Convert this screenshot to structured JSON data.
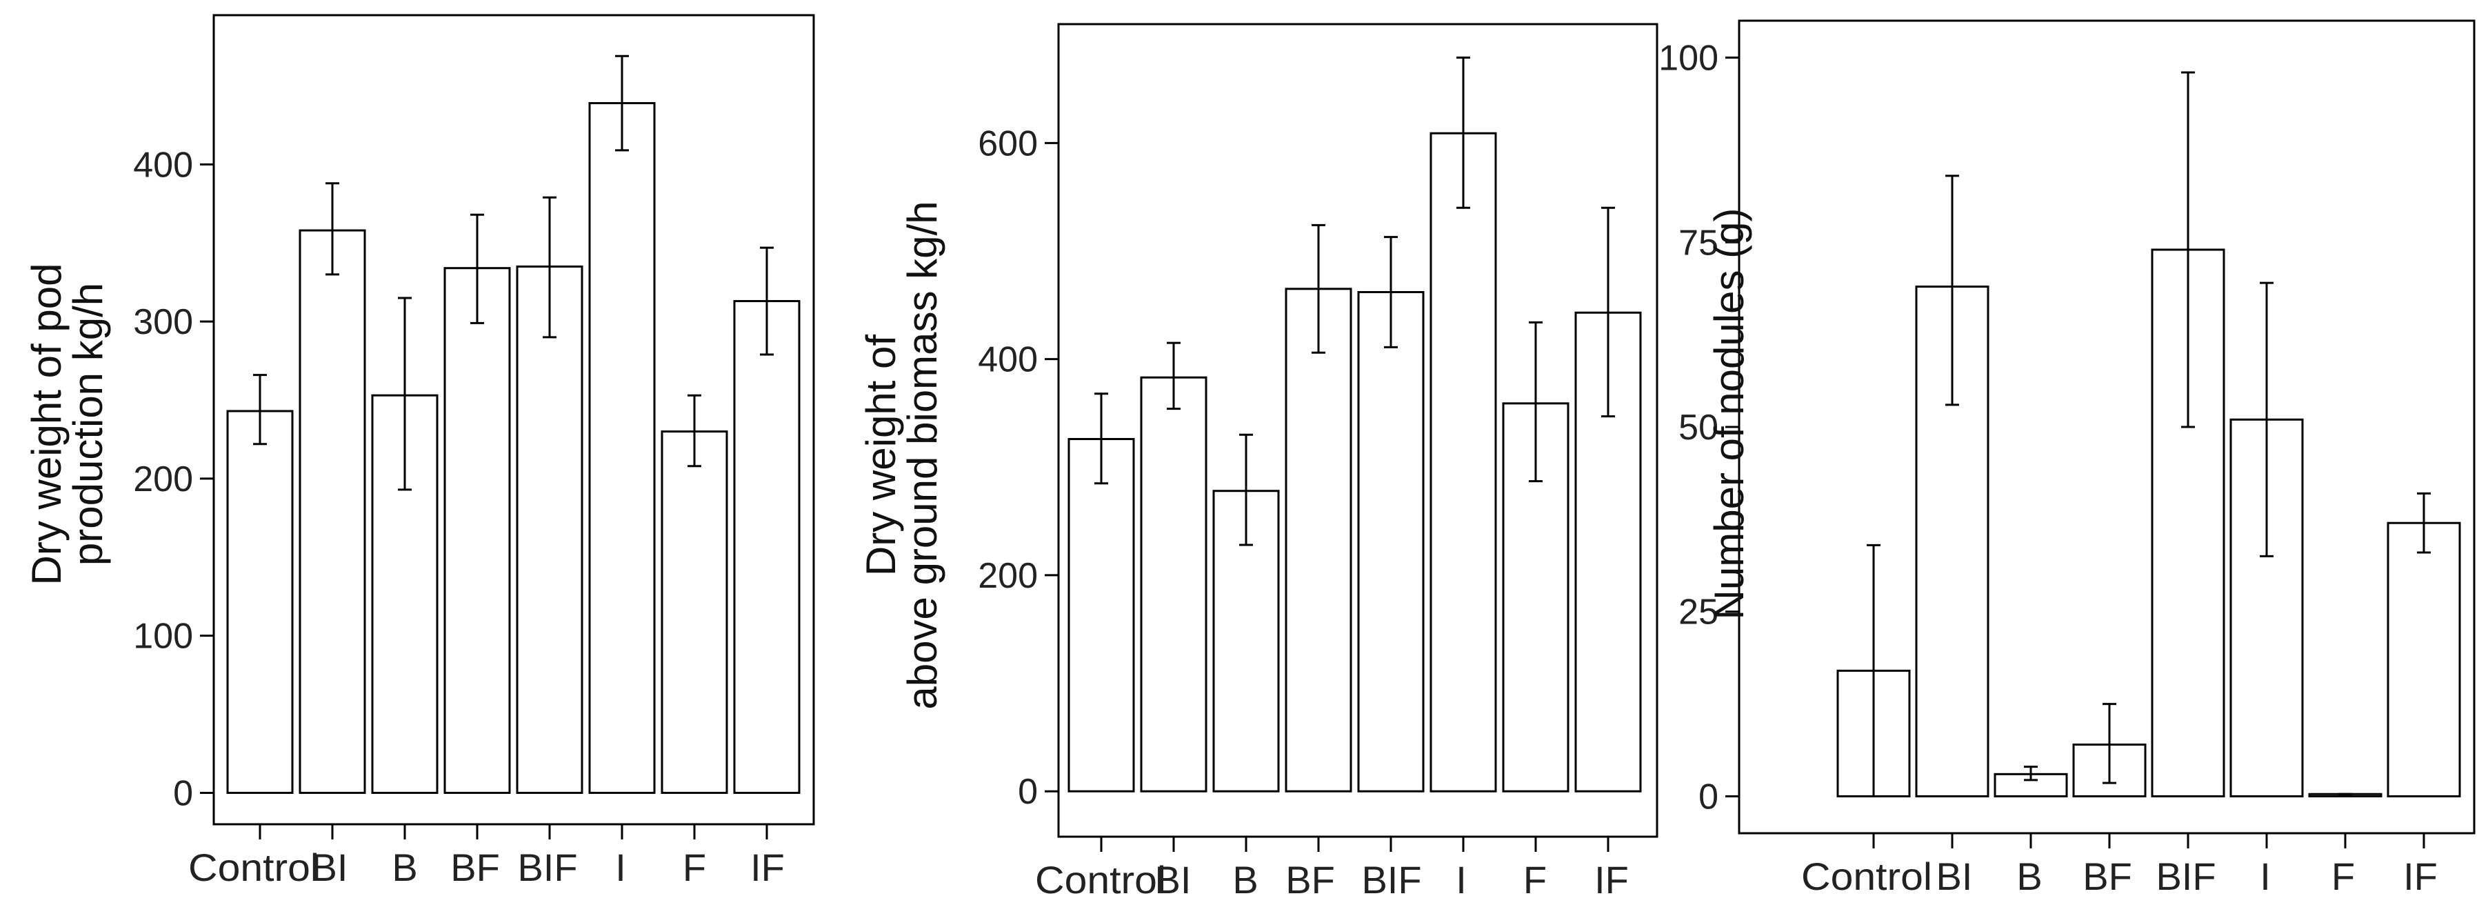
{
  "chart_data": [
    {
      "type": "bar",
      "title": "",
      "xlabel": "",
      "ylabel_lines": [
        "Dry weight of pod",
        "production  kg/h"
      ],
      "categories": [
        "Control",
        "BI",
        "B",
        "BF",
        "BIF",
        "I",
        "F",
        "IF"
      ],
      "values": [
        243,
        358,
        253,
        334,
        335,
        439,
        230,
        313
      ],
      "errors": [
        {
          "low": 222,
          "high": 266
        },
        {
          "low": 330,
          "high": 388
        },
        {
          "low": 193,
          "high": 315
        },
        {
          "low": 299,
          "high": 368
        },
        {
          "low": 290,
          "high": 379
        },
        {
          "low": 409,
          "high": 469
        },
        {
          "low": 208,
          "high": 253
        },
        {
          "low": 279,
          "high": 347
        }
      ],
      "ylim": [
        -20,
        495
      ],
      "yticks": [
        0,
        100,
        200,
        300,
        400
      ],
      "ytick_labels": [
        "0",
        "100",
        "200",
        "300",
        "400"
      ],
      "grid": false
    },
    {
      "type": "bar",
      "title": "",
      "xlabel": "",
      "ylabel_lines": [
        "Dry weight of",
        "above ground biomass  kg/h"
      ],
      "categories": [
        "Control",
        "BI",
        "B",
        "BF",
        "BIF",
        "I",
        "F",
        "IF"
      ],
      "values": [
        326,
        383,
        278,
        465,
        462,
        609,
        359,
        443
      ],
      "errors": [
        {
          "low": 285,
          "high": 368
        },
        {
          "low": 354,
          "high": 415
        },
        {
          "low": 228,
          "high": 330
        },
        {
          "low": 406,
          "high": 524
        },
        {
          "low": 411,
          "high": 513
        },
        {
          "low": 540,
          "high": 679
        },
        {
          "low": 287,
          "high": 434
        },
        {
          "low": 347,
          "high": 540
        }
      ],
      "ylim": [
        -42,
        710
      ],
      "yticks": [
        0,
        200,
        400,
        600
      ],
      "ytick_labels": [
        "0",
        "200",
        "400",
        "600"
      ],
      "grid": false
    },
    {
      "type": "bar",
      "title": "",
      "xlabel": "",
      "ylabel_lines": [
        "Number of nodules (g)"
      ],
      "categories": [
        "Control",
        "BI",
        "B",
        "BF",
        "BIF",
        "I",
        "F",
        "IF"
      ],
      "values": [
        17,
        69,
        3,
        7,
        74,
        51,
        0.3,
        37
      ],
      "errors": [
        {
          "low": 0,
          "high": 34
        },
        {
          "low": 53,
          "high": 84
        },
        {
          "low": 2.2,
          "high": 4
        },
        {
          "low": 1.8,
          "high": 12.5
        },
        {
          "low": 50,
          "high": 98
        },
        {
          "low": 32.5,
          "high": 69.5
        },
        {
          "low": 0.3,
          "high": 0.3
        },
        {
          "low": 33,
          "high": 41
        }
      ],
      "ylim": [
        -5,
        105
      ],
      "yticks": [
        0,
        25,
        50,
        75,
        100
      ],
      "ytick_labels": [
        "0",
        "25",
        "50",
        "75",
        "100"
      ],
      "grid": false
    }
  ]
}
